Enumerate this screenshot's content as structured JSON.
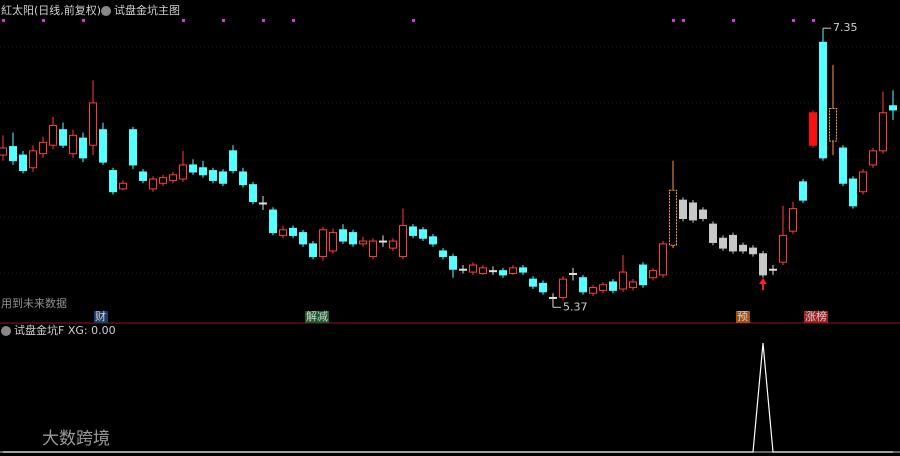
{
  "header": {
    "title": "紅太阳(日线,前复权)",
    "indicator": "试盘金坑主图",
    "note": "用到未来数据"
  },
  "markers": [
    "财",
    "解减",
    "预",
    "涨榜"
  ],
  "watermark": "大数跨境",
  "chart_data": [
    {
      "type": "candlestick",
      "ylim": [
        5.28,
        7.55
      ],
      "colors": {
        "up": "#ff3c3c",
        "down": "#54ffff",
        "flat": "#e0e0e0",
        "gray": "#c8c8c8",
        "limit": "#ff9a3c",
        "solid": "#ff1010"
      },
      "style_overrides": {
        "67": "limit",
        "68": "gray",
        "69": "gray",
        "70": "gray",
        "71": "gray",
        "72": "gray",
        "73": "gray",
        "74": "gray",
        "75": "gray",
        "76": "gray",
        "81": "solid",
        "83": "limit"
      },
      "extremes": {
        "max": 7.35,
        "min": 5.37
      },
      "open": [
        6.45,
        6.51,
        6.45,
        6.36,
        6.46,
        6.52,
        6.63,
        6.46,
        6.57,
        6.52,
        6.63,
        6.34,
        6.21,
        6.63,
        6.33,
        6.21,
        6.25,
        6.27,
        6.28,
        6.38,
        6.36,
        6.34,
        6.33,
        6.48,
        6.33,
        6.24,
        6.11,
        6.06,
        5.88,
        5.93,
        5.9,
        5.82,
        5.73,
        5.77,
        5.92,
        5.9,
        5.82,
        5.73,
        5.84,
        5.79,
        5.73,
        5.94,
        5.92,
        5.87,
        5.77,
        5.73,
        5.64,
        5.62,
        5.61,
        5.63,
        5.63,
        5.61,
        5.65,
        5.57,
        5.54,
        5.44,
        5.44,
        5.61,
        5.58,
        5.47,
        5.49,
        5.55,
        5.5,
        5.51,
        5.67,
        5.58,
        5.6,
        5.81,
        6.13,
        6.11,
        6.06,
        5.96,
        5.86,
        5.88,
        5.81,
        5.79,
        5.75,
        5.64,
        5.69,
        5.91,
        6.26,
        6.52,
        7.25,
        6.55,
        6.5,
        6.28,
        6.19,
        6.38,
        6.48,
        6.8
      ],
      "close": [
        6.5,
        6.41,
        6.34,
        6.48,
        6.54,
        6.66,
        6.52,
        6.59,
        6.43,
        6.82,
        6.4,
        6.19,
        6.25,
        6.38,
        6.27,
        6.28,
        6.29,
        6.31,
        6.38,
        6.33,
        6.31,
        6.27,
        6.25,
        6.34,
        6.24,
        6.12,
        6.11,
        5.9,
        5.92,
        5.88,
        5.82,
        5.73,
        5.92,
        5.9,
        5.84,
        5.82,
        5.84,
        5.84,
        5.84,
        5.84,
        5.95,
        5.88,
        5.86,
        5.82,
        5.73,
        5.64,
        5.64,
        5.67,
        5.65,
        5.63,
        5.6,
        5.65,
        5.62,
        5.52,
        5.48,
        5.44,
        5.57,
        5.61,
        5.48,
        5.51,
        5.53,
        5.49,
        5.62,
        5.55,
        5.53,
        5.63,
        5.82,
        6.2,
        6.0,
        5.99,
        6.0,
        5.83,
        5.79,
        5.77,
        5.77,
        5.75,
        5.6,
        5.64,
        5.88,
        6.07,
        6.13,
        6.75,
        6.43,
        6.78,
        6.25,
        6.09,
        6.33,
        6.48,
        6.75,
        6.77
      ],
      "high": [
        6.59,
        6.61,
        6.48,
        6.52,
        6.58,
        6.72,
        6.68,
        6.63,
        6.61,
        6.98,
        6.68,
        6.36,
        6.27,
        6.65,
        6.35,
        6.3,
        6.31,
        6.33,
        6.48,
        6.42,
        6.41,
        6.36,
        6.35,
        6.52,
        6.36,
        6.26,
        6.16,
        6.08,
        5.95,
        5.95,
        5.92,
        5.84,
        5.94,
        5.93,
        5.96,
        5.92,
        5.87,
        5.86,
        5.88,
        5.86,
        6.07,
        5.96,
        5.94,
        5.89,
        5.79,
        5.75,
        5.67,
        5.69,
        5.67,
        5.66,
        5.65,
        5.67,
        5.67,
        5.59,
        5.56,
        5.47,
        5.59,
        5.65,
        5.6,
        5.53,
        5.55,
        5.57,
        5.74,
        5.57,
        5.69,
        5.65,
        5.84,
        6.41,
        6.15,
        6.13,
        6.08,
        5.98,
        5.88,
        5.9,
        5.83,
        5.81,
        5.77,
        5.67,
        6.09,
        6.12,
        6.28,
        6.77,
        7.35,
        7.09,
        6.52,
        6.3,
        6.35,
        6.5,
        6.9,
        6.91
      ],
      "low": [
        6.41,
        6.38,
        6.32,
        6.33,
        6.43,
        6.49,
        6.5,
        6.43,
        6.4,
        6.45,
        6.38,
        6.17,
        6.2,
        6.35,
        6.25,
        6.19,
        6.23,
        6.25,
        6.26,
        6.31,
        6.29,
        6.25,
        6.23,
        6.32,
        6.22,
        6.1,
        6.06,
        5.88,
        5.86,
        5.86,
        5.8,
        5.71,
        5.7,
        5.75,
        5.82,
        5.8,
        5.8,
        5.71,
        5.8,
        5.77,
        5.71,
        5.86,
        5.84,
        5.8,
        5.71,
        5.58,
        5.61,
        5.6,
        5.6,
        5.6,
        5.58,
        5.6,
        5.6,
        5.5,
        5.46,
        5.37,
        5.42,
        5.56,
        5.46,
        5.45,
        5.47,
        5.47,
        5.48,
        5.49,
        5.51,
        5.56,
        5.58,
        5.79,
        5.98,
        5.97,
        5.98,
        5.81,
        5.77,
        5.75,
        5.75,
        5.73,
        5.58,
        5.6,
        5.67,
        5.89,
        6.11,
        6.5,
        6.41,
        6.45,
        6.23,
        6.07,
        6.17,
        6.36,
        6.46,
        6.7
      ]
    },
    {
      "type": "line",
      "title": "试盘金坑F XG: 0.00",
      "color": "#ffffff",
      "ylim": [
        0,
        1
      ],
      "values": [
        0,
        0,
        0,
        0,
        0,
        0,
        0,
        0,
        0,
        0,
        0,
        0,
        0,
        0,
        0,
        0,
        0,
        0,
        0,
        0,
        0,
        0,
        0,
        0,
        0,
        0,
        0,
        0,
        0,
        0,
        0,
        0,
        0,
        0,
        0,
        0,
        0,
        0,
        0,
        0,
        0,
        0,
        0,
        0,
        0,
        0,
        0,
        0,
        0,
        0,
        0,
        0,
        0,
        0,
        0,
        0,
        0,
        0,
        0,
        0,
        0,
        0,
        0,
        0,
        0,
        0,
        0,
        0,
        0,
        0,
        0,
        0,
        0,
        0,
        0,
        0,
        1,
        0,
        0,
        0,
        0,
        0,
        0,
        0,
        0,
        0,
        0,
        0,
        0,
        0
      ]
    }
  ]
}
